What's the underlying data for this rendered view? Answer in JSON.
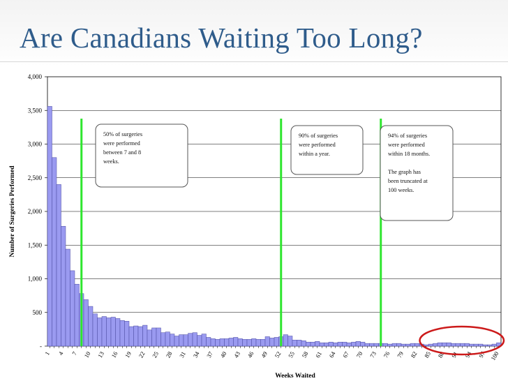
{
  "slide": {
    "title": "Are Canadians Waiting Too Long?"
  },
  "colors": {
    "title": "#2f5c8b",
    "bar_fill": "#9a9af0",
    "bar_stroke": "#4a4aa0",
    "marker_line": "#2ee62e",
    "highlight_ellipse": "#cc1a1a"
  },
  "chart_data": {
    "type": "bar",
    "title": "",
    "xlabel": "Weeks Waited",
    "ylabel": "Number of Surgeries Performed",
    "ylim": [
      0,
      4000
    ],
    "y_ticks": [
      {
        "value": 0,
        "label": "-"
      },
      {
        "value": 500,
        "label": "500"
      },
      {
        "value": 1000,
        "label": "1,000"
      },
      {
        "value": 1500,
        "label": "1,500"
      },
      {
        "value": 2000,
        "label": "2,000"
      },
      {
        "value": 2500,
        "label": "2,500"
      },
      {
        "value": 3000,
        "label": "3,000"
      },
      {
        "value": 3500,
        "label": "3,500"
      },
      {
        "value": 4000,
        "label": "4,000"
      }
    ],
    "x_tick_labels": [
      "1",
      "4",
      "7",
      "10",
      "13",
      "16",
      "19",
      "22",
      "25",
      "28",
      "31",
      "34",
      "37",
      "40",
      "43",
      "46",
      "49",
      "52",
      "55",
      "58",
      "61",
      "64",
      "67",
      "70",
      "73",
      "76",
      "79",
      "82",
      "85",
      "88",
      "91",
      "94",
      "97",
      "100"
    ],
    "x_tick_step": 3,
    "grid": "horizontal",
    "weeks": [
      1,
      2,
      3,
      4,
      5,
      6,
      7,
      8,
      9,
      10,
      11,
      12,
      13,
      14,
      15,
      16,
      17,
      18,
      19,
      20,
      21,
      22,
      23,
      24,
      25,
      26,
      27,
      28,
      29,
      30,
      31,
      32,
      33,
      34,
      35,
      36,
      37,
      38,
      39,
      40,
      41,
      42,
      43,
      44,
      45,
      46,
      47,
      48,
      49,
      50,
      51,
      52,
      53,
      54,
      55,
      56,
      57,
      58,
      59,
      60,
      61,
      62,
      63,
      64,
      65,
      66,
      67,
      68,
      69,
      70,
      71,
      72,
      73,
      74,
      75,
      76,
      77,
      78,
      79,
      80,
      81,
      82,
      83,
      84,
      85,
      86,
      87,
      88,
      89,
      90,
      91,
      92,
      93,
      94,
      95,
      96,
      97,
      98,
      99,
      100
    ],
    "values": [
      3560,
      2800,
      2400,
      1780,
      1440,
      1120,
      920,
      780,
      690,
      590,
      480,
      420,
      440,
      420,
      430,
      410,
      380,
      370,
      290,
      300,
      290,
      310,
      240,
      270,
      270,
      200,
      210,
      180,
      150,
      170,
      170,
      190,
      200,
      160,
      180,
      130,
      110,
      100,
      110,
      110,
      120,
      130,
      110,
      100,
      100,
      110,
      100,
      100,
      140,
      120,
      130,
      140,
      170,
      150,
      90,
      90,
      80,
      60,
      60,
      70,
      50,
      50,
      60,
      50,
      60,
      60,
      50,
      60,
      70,
      60,
      40,
      40,
      40,
      40,
      40,
      30,
      40,
      40,
      30,
      30,
      40,
      40,
      30,
      20,
      30,
      40,
      50,
      50,
      50,
      40,
      40,
      40,
      40,
      30,
      30,
      30,
      20,
      20,
      30,
      50
    ],
    "vertical_markers": [
      {
        "week": 8.5,
        "note": [
          "50% of surgeries",
          "were performed",
          "between 7 and 8",
          "weeks."
        ]
      },
      {
        "week": 52.5,
        "note": [
          "90% of surgeries",
          "were performed",
          "within a year."
        ]
      },
      {
        "week": 74.5,
        "note": [
          "94% of surgeries",
          "were performed",
          "within 18 months.",
          "",
          "The graph has",
          "been truncated at",
          "100 weeks."
        ]
      }
    ],
    "highlight_range": [
      84,
      100
    ]
  }
}
